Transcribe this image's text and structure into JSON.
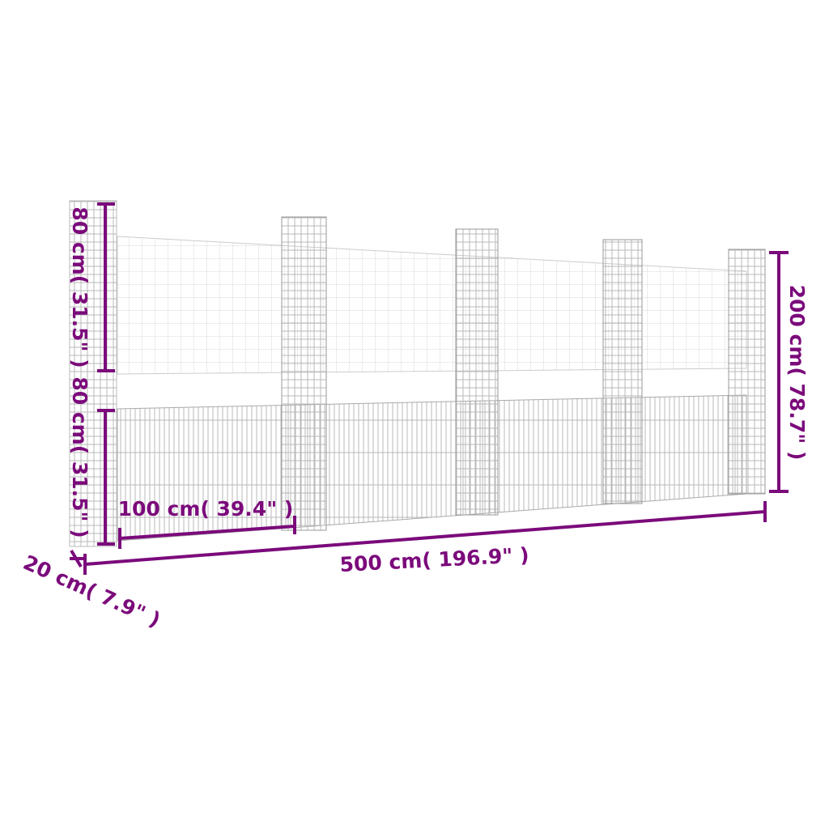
{
  "accent_color": "#7b0a7b",
  "dimensions": {
    "upper_height": "80 cm( 31.5\" )",
    "lower_height": "80 cm( 31.5\" )",
    "panel_width": "100 cm( 39.4\" )",
    "total_length": "500 cm( 196.9\" )",
    "total_height": "200 cm( 78.7\" )",
    "depth": "20 cm( 7.9\" )"
  }
}
